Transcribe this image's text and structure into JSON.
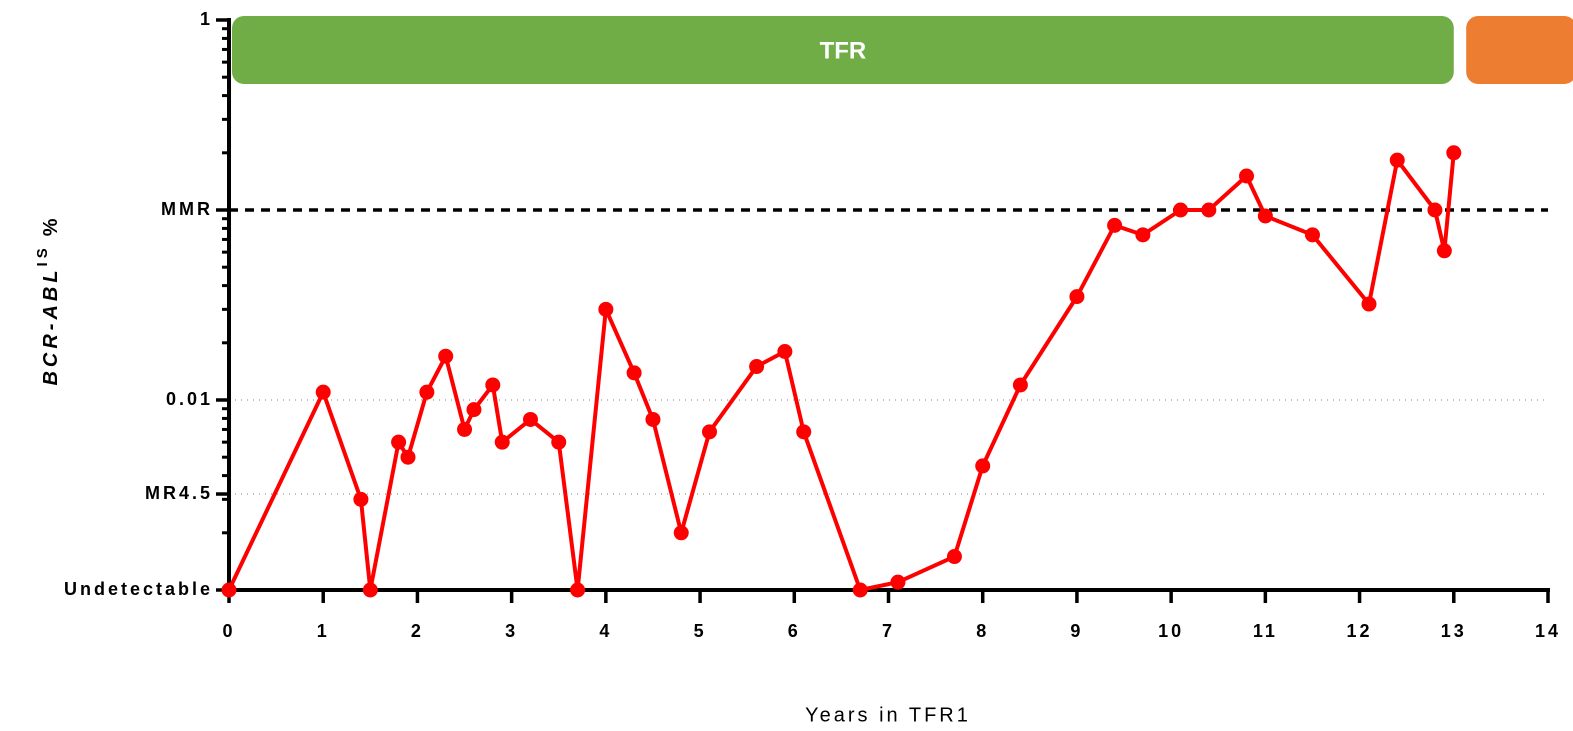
{
  "chart_data": {
    "type": "line",
    "xlabel": "Years in TFR1",
    "ylabel": "BCR-ABL",
    "ylabel_sup": "IS",
    "ylabel_suffix": "%",
    "yscale": "log",
    "xlim": [
      0,
      14
    ],
    "xticks": [
      0,
      1,
      2,
      3,
      4,
      5,
      6,
      7,
      8,
      9,
      10,
      11,
      12,
      13,
      14
    ],
    "ylim": [
      0.001,
      1
    ],
    "yticks": [
      {
        "value": 0.001,
        "label": "Undetectable"
      },
      {
        "value": 0.0032,
        "label": "MR4.5"
      },
      0.01,
      {
        "value": 0.1,
        "label": "MMR"
      },
      1
    ],
    "dotted_grid": [
      0.0032,
      0.01
    ],
    "reference_line": {
      "value": 0.1,
      "style": "dashed",
      "color": "#000000"
    },
    "bands": [
      {
        "label": "TFR",
        "start": 0,
        "end": 13,
        "color": "#70ad47"
      },
      {
        "start": 13.1,
        "end": 14.3,
        "color": "#ed7d31"
      }
    ],
    "series": [
      {
        "name": "BCR-ABL",
        "color": "#ff0000",
        "x": [
          0,
          1.0,
          1.4,
          1.5,
          1.8,
          1.9,
          2.1,
          2.3,
          2.5,
          2.6,
          2.8,
          2.9,
          3.2,
          3.5,
          3.7,
          4.0,
          4.3,
          4.5,
          4.8,
          5.1,
          5.6,
          5.9,
          6.1,
          6.7,
          7.1,
          7.7,
          8.0,
          8.4,
          9.0,
          9.4,
          9.7,
          10.1,
          10.4,
          10.8,
          11.0,
          11.5,
          12.1,
          12.4,
          12.8,
          12.9,
          13.0
        ],
        "values": [
          0.001,
          0.011,
          0.003,
          0.001,
          0.006,
          0.005,
          0.011,
          0.017,
          0.007,
          0.0089,
          0.012,
          0.006,
          0.0079,
          0.006,
          0.001,
          0.03,
          0.0139,
          0.0079,
          0.002,
          0.0068,
          0.015,
          0.018,
          0.0068,
          0.001,
          0.0011,
          0.0015,
          0.0045,
          0.012,
          0.035,
          0.083,
          0.074,
          0.1,
          0.1,
          0.151,
          0.093,
          0.074,
          0.032,
          0.183,
          0.1,
          0.061,
          0.2
        ]
      }
    ]
  }
}
